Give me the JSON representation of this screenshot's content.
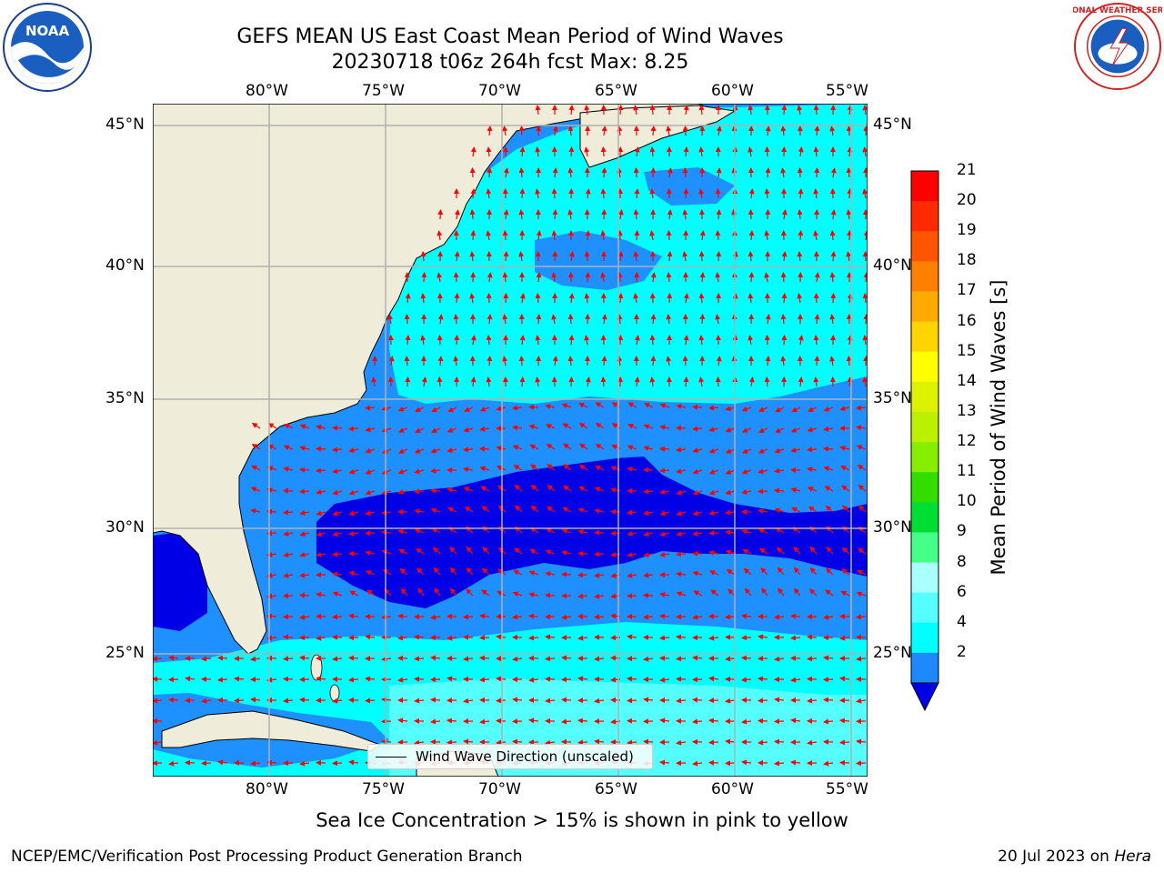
{
  "header": {
    "title_line1": "GEFS MEAN US East Coast Mean Period of Wind Waves",
    "title_line2": "20230718 t06z 264h fcst   Max: 8.25"
  },
  "logos": {
    "left": {
      "icon": "noaa-logo-icon",
      "text": "NOAA"
    },
    "right": {
      "icon": "nws-logo-icon",
      "text": "NATIONAL WEATHER SERVICE"
    }
  },
  "map": {
    "lon_labels": [
      "80°W",
      "75°W",
      "70°W",
      "65°W",
      "60°W",
      "55°W"
    ],
    "lat_labels": [
      "45°N",
      "40°N",
      "35°N",
      "30°N",
      "25°N"
    ],
    "legend_label": "Wind Wave Direction (unscaled)",
    "colors": {
      "land": "#efedd9",
      "ocean_lt": "#00ffff",
      "ocean_mid": "#1e90ff",
      "ocean_deep": "#0000e6",
      "arrows": "#ff0000",
      "grid": "#b0b0b0"
    }
  },
  "colorbar": {
    "label": "Mean Period of Wind Waves [s]",
    "ticks": [
      "21",
      "20",
      "19",
      "18",
      "17",
      "16",
      "15",
      "14",
      "13",
      "12",
      "11",
      "10",
      "9",
      "8",
      "6",
      "4",
      "2"
    ],
    "colors": [
      "#ff0000",
      "#ff2a00",
      "#ff5500",
      "#ff8000",
      "#ffaa00",
      "#ffd400",
      "#ffff00",
      "#ddf200",
      "#bbf000",
      "#88ee00",
      "#33dd00",
      "#00dd33",
      "#44ff88",
      "#aaffff",
      "#55ffff",
      "#00ffff",
      "#1e88ff"
    ],
    "extend_color": "#0000e6"
  },
  "footer": {
    "note": "Sea Ice Concentration > 15% is shown in pink to yellow",
    "credit": "NCEP/EMC/Verification Post Processing Product Generation Branch",
    "date": "20 Jul 2023 on ",
    "host": "Hera"
  }
}
